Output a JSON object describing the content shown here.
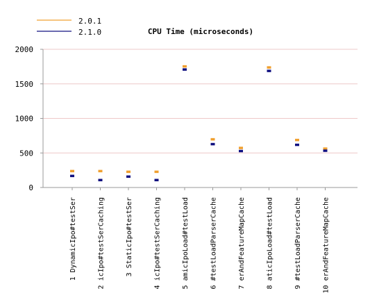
{
  "chart_data": {
    "type": "scatter",
    "title": "CPU Time (microseconds)",
    "xlabel": "",
    "ylabel": "",
    "ylim": [
      0,
      2000
    ],
    "yticks": [
      0,
      500,
      1000,
      1500,
      2000
    ],
    "grid": true,
    "legend_position": "top-left",
    "categories": [
      "1 DynamicIpo#testSer",
      "2 icIpo#testSerCaching",
      "3 StaticIpo#testSer",
      "4 icIpo#testSerCaching",
      "5 amicIpoLoad#testLoad",
      "6 #testLoadParserCache",
      "7 erAndFeatureMapCache",
      "8 aticIpoLoad#testLoad",
      "9 #testLoadParserCache",
      "10 erAndFeatureMapCache"
    ],
    "series": [
      {
        "name": "2.0.1",
        "color": "#f0a030",
        "values": [
          240,
          240,
          230,
          230,
          1755,
          700,
          575,
          1740,
          690,
          565
        ]
      },
      {
        "name": "2.1.0",
        "color": "#101080",
        "values": [
          170,
          110,
          160,
          110,
          1710,
          630,
          530,
          1690,
          620,
          535
        ]
      }
    ]
  }
}
